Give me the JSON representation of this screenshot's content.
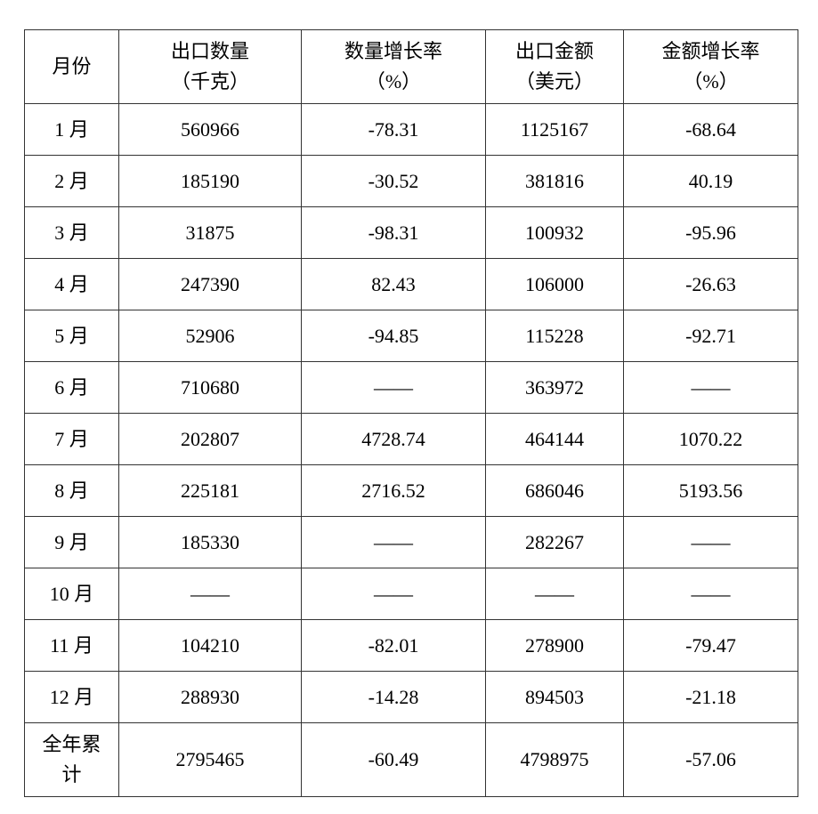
{
  "table": {
    "headers": [
      {
        "line1": "月份",
        "line2": ""
      },
      {
        "line1": "出口数量",
        "line2": "（千克）"
      },
      {
        "line1": "数量增长率",
        "line2": "（%）"
      },
      {
        "line1": "出口金额",
        "line2": "（美元）"
      },
      {
        "line1": "金额增长率",
        "line2": "（%）"
      }
    ],
    "rows": [
      [
        "1 月",
        "560966",
        "-78.31",
        "1125167",
        "-68.64"
      ],
      [
        "2 月",
        "185190",
        "-30.52",
        "381816",
        "40.19"
      ],
      [
        "3 月",
        "31875",
        "-98.31",
        "100932",
        "-95.96"
      ],
      [
        "4 月",
        "247390",
        "82.43",
        "106000",
        "-26.63"
      ],
      [
        "5 月",
        "52906",
        "-94.85",
        "115228",
        "-92.71"
      ],
      [
        "6 月",
        "710680",
        "——",
        "363972",
        "——"
      ],
      [
        "7 月",
        "202807",
        "4728.74",
        "464144",
        "1070.22"
      ],
      [
        "8 月",
        "225181",
        "2716.52",
        "686046",
        "5193.56"
      ],
      [
        "9 月",
        "185330",
        "——",
        "282267",
        "——"
      ],
      [
        "10 月",
        "——",
        "——",
        "——",
        "——"
      ],
      [
        "11 月",
        "104210",
        "-82.01",
        "278900",
        "-79.47"
      ],
      [
        "12 月",
        "288930",
        "-14.28",
        "894503",
        "-21.18"
      ]
    ],
    "total": {
      "label_line1": "全年累",
      "label_line2": "计",
      "values": [
        "2795465",
        "-60.49",
        "4798975",
        "-57.06"
      ]
    }
  }
}
